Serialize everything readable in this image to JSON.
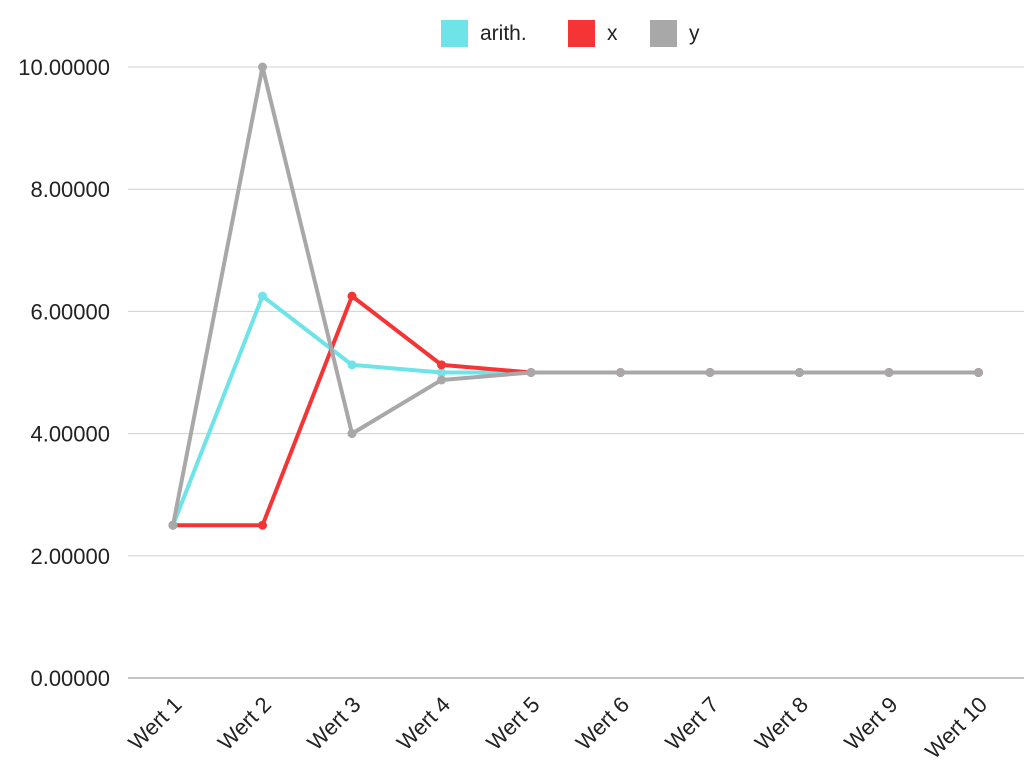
{
  "chart_data": {
    "type": "line",
    "categories": [
      "Wert 1",
      "Wert 2",
      "Wert 3",
      "Wert 4",
      "Wert 5",
      "Wert 6",
      "Wert 7",
      "Wert 8",
      "Wert 9",
      "Wert 10"
    ],
    "series": [
      {
        "name": "arith.",
        "color": "#6ee3e8",
        "values": [
          2.5,
          6.25,
          5.125,
          5.0,
          5.0,
          5.0,
          5.0,
          5.0,
          5.0,
          5.0
        ]
      },
      {
        "name": "x",
        "color": "#f53535",
        "values": [
          2.5,
          2.5,
          6.25,
          5.125,
          5.0,
          5.0,
          5.0,
          5.0,
          5.0,
          5.0
        ]
      },
      {
        "name": "y",
        "color": "#a8a8a8",
        "values": [
          2.5,
          10.0,
          4.0,
          4.878,
          5.0,
          5.0,
          5.0,
          5.0,
          5.0,
          5.0
        ]
      }
    ],
    "y_ticks": [
      "0.00000",
      "2.00000",
      "4.00000",
      "6.00000",
      "8.00000",
      "10.00000"
    ],
    "ylim": [
      0,
      10
    ],
    "grid": true,
    "legend_position": "top-center",
    "title": "",
    "xlabel": "",
    "ylabel": ""
  }
}
